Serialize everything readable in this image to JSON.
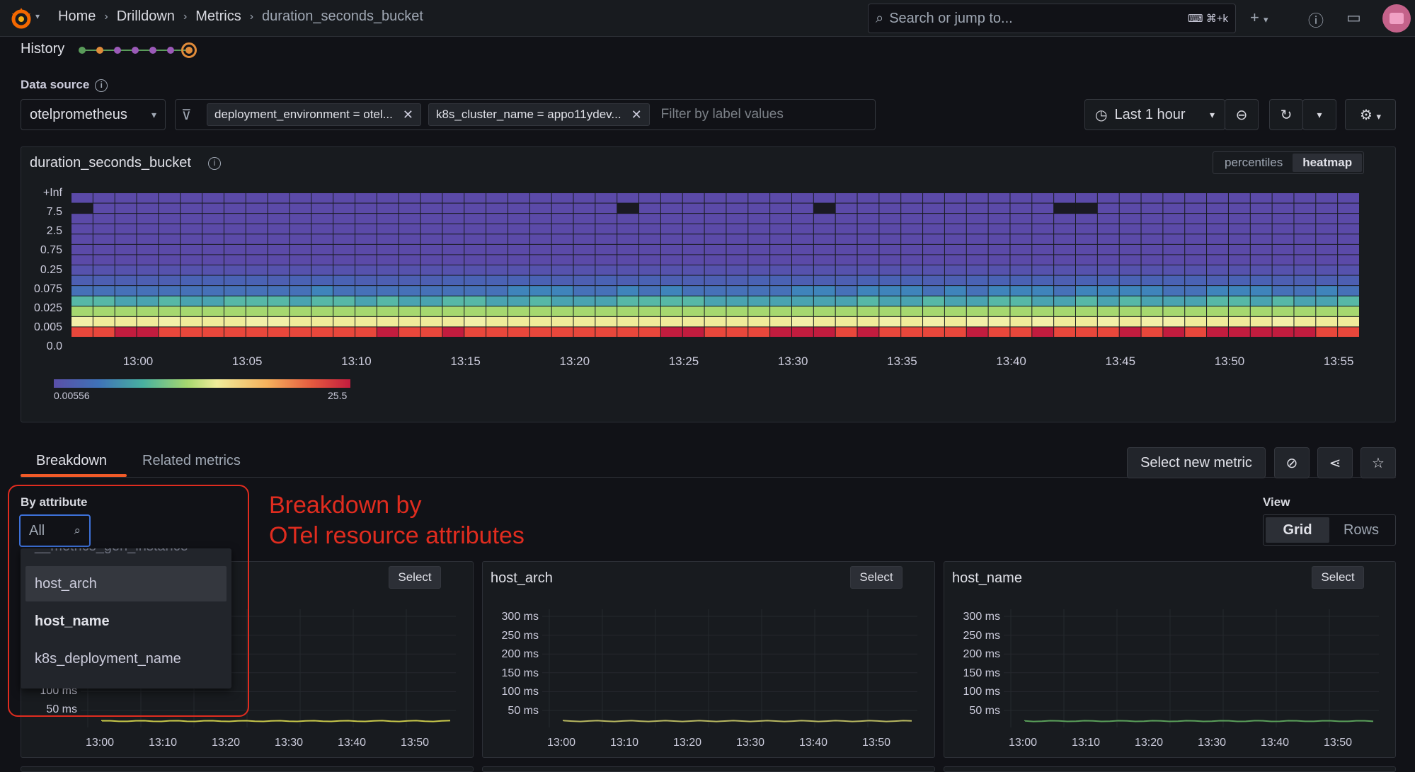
{
  "breadcrumbs": [
    "Home",
    "Drilldown",
    "Metrics",
    "duration_seconds_bucket"
  ],
  "search": {
    "placeholder": "Search or jump to...",
    "shortcut": "⌘+k"
  },
  "history": {
    "label": "History"
  },
  "datasource": {
    "label": "Data source",
    "value": "otelprometheus"
  },
  "filters": {
    "chips": [
      "deployment_environment = otel...",
      "k8s_cluster_name = appo11ydev..."
    ],
    "placeholder": "Filter by label values"
  },
  "time_range": {
    "label": "Last 1 hour"
  },
  "main_panel": {
    "title": "duration_seconds_bucket",
    "modes": [
      "percentiles",
      "heatmap"
    ],
    "active_mode": "heatmap"
  },
  "tabs": [
    "Breakdown",
    "Related metrics"
  ],
  "actions": {
    "select_new_metric": "Select new metric"
  },
  "by_attribute": {
    "label": "By attribute",
    "input_value": "All",
    "options": [
      "__metrics_gen_instance",
      "host_arch",
      "host_name",
      "k8s_deployment_name"
    ]
  },
  "annotation": {
    "line1": "Breakdown by",
    "line2": "OTel resource attributes"
  },
  "view": {
    "label": "View",
    "options": [
      "Grid",
      "Rows"
    ],
    "active": "Grid"
  },
  "small_panels": [
    {
      "title": "",
      "select_label": "Select",
      "y_ticks": [
        "100 ms",
        "50 ms"
      ]
    },
    {
      "title": "host_arch",
      "select_label": "Select",
      "y_ticks": [
        "300 ms",
        "250 ms",
        "200 ms",
        "150 ms",
        "100 ms",
        "50 ms"
      ]
    },
    {
      "title": "host_name",
      "select_label": "Select",
      "y_ticks": [
        "300 ms",
        "250 ms",
        "200 ms",
        "150 ms",
        "100 ms",
        "50 ms"
      ]
    }
  ],
  "small_x_ticks": [
    "13:00",
    "13:10",
    "13:20",
    "13:30",
    "13:40",
    "13:50"
  ],
  "chart_data": {
    "type": "heatmap",
    "title": "duration_seconds_bucket",
    "y_buckets": [
      "0.0",
      "0.005",
      "0.025",
      "0.075",
      "0.25",
      "0.75",
      "2.5",
      "7.5",
      "+Inf"
    ],
    "x_ticks": [
      "13:00",
      "13:05",
      "13:10",
      "13:15",
      "13:20",
      "13:25",
      "13:30",
      "13:35",
      "13:40",
      "13:45",
      "13:50",
      "13:55"
    ],
    "color_scale": {
      "min": "0.00556",
      "max": "25.5"
    },
    "colors": {
      "low": "#5a4fa8",
      "mid": "#f0ec9a",
      "high": "#c21c3e"
    }
  }
}
